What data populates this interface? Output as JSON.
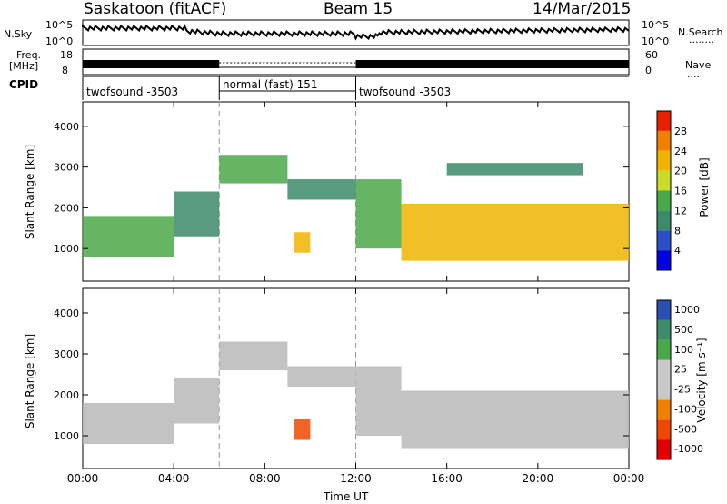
{
  "header": {
    "station": "Saskatoon (fitACF)",
    "beam": "Beam 15",
    "date": "14/Mar/2015"
  },
  "top_panels": {
    "sky_label": "N.Sky",
    "sky_ticks": [
      "10^5",
      "10^0"
    ],
    "sky_right_ticks": [
      "10^5",
      "10^0"
    ],
    "search_label": "N.Search",
    "search_dots": "........",
    "freq_label_1": "Freq.",
    "freq_label_2": "[MHz]",
    "freq_ticks": [
      "18",
      "8"
    ],
    "nave_ticks": [
      "60",
      "0"
    ],
    "nave_label": "Nave",
    "nave_dots": "....",
    "cpid_label": "CPID",
    "cpid_segments": [
      {
        "label": "twofsound -3503"
      },
      {
        "label": "normal (fast) 151"
      },
      {
        "label": "twofsound -3503"
      }
    ]
  },
  "colors": {
    "power": [
      "#0000e0",
      "#2a4fc8",
      "#3b8a6a",
      "#4aa84a",
      "#c8dc28",
      "#f0b400",
      "#f08000",
      "#e82000"
    ],
    "velocity": [
      "#2a4fb0",
      "#3b8a6a",
      "#4aa84a",
      "#c8c8c8",
      "#c8c8c8",
      "#f08000",
      "#f04800",
      "#e00000"
    ],
    "ground_scatter": "#b8b8b8"
  },
  "chart_data": [
    {
      "type": "heatmap",
      "name_in_colorbar": "Power [dB]",
      "ylabel": "Slant Range [km]",
      "yticks": [
        "1000",
        "2000",
        "3000",
        "4000"
      ],
      "ylim": [
        200,
        4600
      ],
      "xlim": [
        "00:00",
        "24:00"
      ],
      "colorbar_ticks": [
        "4",
        "8",
        "12",
        "16",
        "20",
        "24",
        "28"
      ],
      "colorbar_range": [
        0,
        32
      ],
      "scatter_bands": [
        {
          "t0": 0.0,
          "t1": 4.0,
          "r0": 800,
          "r1": 1800,
          "value": 14
        },
        {
          "t0": 4.0,
          "t1": 6.0,
          "r0": 1300,
          "r1": 2400,
          "value": 10
        },
        {
          "t0": 6.0,
          "t1": 9.0,
          "r0": 2600,
          "r1": 3300,
          "value": 12
        },
        {
          "t0": 9.0,
          "t1": 12.0,
          "r0": 2200,
          "r1": 2700,
          "value": 10
        },
        {
          "t0": 9.3,
          "t1": 10.0,
          "r0": 900,
          "r1": 1400,
          "value": 22
        },
        {
          "t0": 12.0,
          "t1": 14.0,
          "r0": 1000,
          "r1": 2700,
          "value": 12
        },
        {
          "t0": 14.0,
          "t1": 24.0,
          "r0": 700,
          "r1": 2100,
          "value": 20
        },
        {
          "t0": 16.0,
          "t1": 22.0,
          "r0": 2800,
          "r1": 3100,
          "value": 8
        }
      ]
    },
    {
      "type": "heatmap",
      "name_in_colorbar": "Velocity [m s⁻¹]",
      "ylabel": "Slant Range [km]",
      "yticks": [
        "1000",
        "2000",
        "3000",
        "4000"
      ],
      "ylim": [
        200,
        4600
      ],
      "xlim": [
        "00:00",
        "24:00"
      ],
      "colorbar_ticks": [
        "1000",
        "500",
        "100",
        "25",
        "-25",
        "-100",
        "-500",
        "-1000"
      ],
      "scatter_bands": [
        {
          "t0": 0.0,
          "t1": 4.0,
          "r0": 800,
          "r1": 1800,
          "value": 0
        },
        {
          "t0": 4.0,
          "t1": 6.0,
          "r0": 1300,
          "r1": 2400,
          "value": 0
        },
        {
          "t0": 6.0,
          "t1": 9.0,
          "r0": 2600,
          "r1": 3300,
          "value": 0
        },
        {
          "t0": 9.0,
          "t1": 12.0,
          "r0": 2200,
          "r1": 2700,
          "value": 0
        },
        {
          "t0": 9.3,
          "t1": 10.0,
          "r0": 900,
          "r1": 1400,
          "value": -300
        },
        {
          "t0": 12.0,
          "t1": 14.0,
          "r0": 1000,
          "r1": 2700,
          "value": 0
        },
        {
          "t0": 14.0,
          "t1": 24.0,
          "r0": 700,
          "r1": 2100,
          "value": 0
        }
      ]
    }
  ],
  "xaxis": {
    "ticks": [
      "00:00",
      "04:00",
      "08:00",
      "12:00",
      "16:00",
      "20:00",
      "00:00"
    ],
    "label": "Time UT"
  }
}
